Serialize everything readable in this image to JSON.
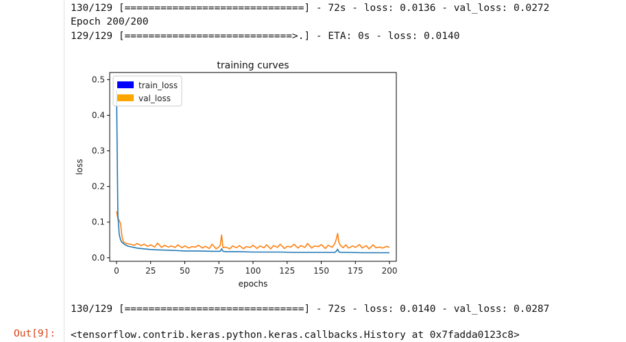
{
  "console": {
    "line1": "130/129 [==============================] - 72s - loss: 0.0136 - val_loss: 0.0272",
    "line2": "Epoch 200/200",
    "line3": "129/129 [============================>.] - ETA: 0s - loss: 0.0140",
    "line4": "130/129 [==============================] - 72s - loss: 0.0140 - val_loss: 0.0287"
  },
  "output": {
    "prompt": "Out[9]:",
    "text": "<tensorflow.contrib.keras.python.keras.callbacks.History at 0x7fadda0123c8>"
  },
  "chart_data": {
    "type": "line",
    "title": "training curves",
    "xlabel": "epochs",
    "ylabel": "loss",
    "xlim": [
      -5,
      205
    ],
    "ylim": [
      -0.01,
      0.52
    ],
    "xticks": [
      0,
      25,
      50,
      75,
      100,
      125,
      150,
      175,
      200
    ],
    "yticks": [
      0.0,
      0.1,
      0.2,
      0.3,
      0.4,
      0.5
    ],
    "ytick_labels": [
      "0.0",
      "0.1",
      "0.2",
      "0.3",
      "0.4",
      "0.5"
    ],
    "legend_position": "top-left",
    "series": [
      {
        "name": "train_loss",
        "color": "#1f77b4",
        "legend_color": "#0000ff",
        "x": [
          0,
          1,
          2,
          3,
          4,
          6,
          8,
          10,
          15,
          20,
          25,
          30,
          40,
          50,
          60,
          70,
          76,
          77,
          78,
          80,
          90,
          100,
          110,
          120,
          130,
          140,
          150,
          160,
          161,
          162,
          163,
          165,
          170,
          180,
          190,
          200
        ],
        "values": [
          0.47,
          0.12,
          0.065,
          0.05,
          0.043,
          0.037,
          0.033,
          0.031,
          0.027,
          0.025,
          0.023,
          0.022,
          0.021,
          0.019,
          0.019,
          0.018,
          0.018,
          0.025,
          0.018,
          0.017,
          0.017,
          0.016,
          0.016,
          0.016,
          0.015,
          0.015,
          0.015,
          0.015,
          0.018,
          0.024,
          0.016,
          0.015,
          0.015,
          0.014,
          0.014,
          0.014
        ]
      },
      {
        "name": "val_loss",
        "color": "#ff7f0e",
        "legend_color": "#ffa500",
        "x": [
          0,
          1,
          2,
          3,
          4,
          5,
          7,
          10,
          13,
          15,
          18,
          20,
          23,
          25,
          28,
          30,
          33,
          35,
          38,
          40,
          43,
          45,
          48,
          50,
          53,
          55,
          58,
          60,
          63,
          65,
          68,
          70,
          73,
          75,
          76,
          77,
          78,
          80,
          83,
          85,
          88,
          90,
          93,
          95,
          98,
          100,
          103,
          105,
          108,
          110,
          113,
          115,
          118,
          120,
          123,
          125,
          128,
          130,
          133,
          135,
          138,
          140,
          143,
          145,
          148,
          150,
          153,
          155,
          158,
          160,
          161,
          162,
          163,
          164,
          166,
          168,
          170,
          173,
          175,
          178,
          180,
          183,
          185,
          188,
          190,
          193,
          195,
          198,
          200
        ],
        "values": [
          0.13,
          0.11,
          0.105,
          0.095,
          0.06,
          0.045,
          0.04,
          0.038,
          0.035,
          0.04,
          0.034,
          0.038,
          0.032,
          0.036,
          0.03,
          0.041,
          0.029,
          0.035,
          0.03,
          0.033,
          0.029,
          0.036,
          0.028,
          0.033,
          0.027,
          0.031,
          0.03,
          0.035,
          0.027,
          0.032,
          0.026,
          0.038,
          0.025,
          0.03,
          0.035,
          0.064,
          0.028,
          0.03,
          0.025,
          0.033,
          0.028,
          0.034,
          0.025,
          0.031,
          0.029,
          0.035,
          0.026,
          0.033,
          0.028,
          0.036,
          0.025,
          0.034,
          0.029,
          0.038,
          0.026,
          0.032,
          0.03,
          0.038,
          0.027,
          0.034,
          0.029,
          0.04,
          0.027,
          0.033,
          0.031,
          0.037,
          0.026,
          0.035,
          0.029,
          0.04,
          0.052,
          0.068,
          0.042,
          0.035,
          0.028,
          0.036,
          0.027,
          0.033,
          0.029,
          0.037,
          0.027,
          0.034,
          0.025,
          0.036,
          0.028,
          0.03,
          0.027,
          0.032,
          0.029
        ]
      }
    ]
  }
}
